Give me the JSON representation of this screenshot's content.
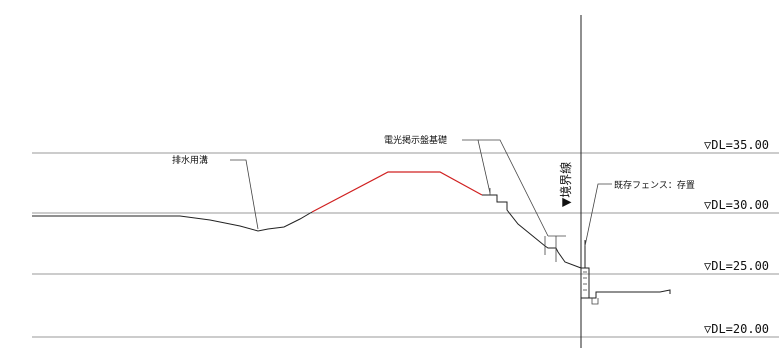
{
  "levels": [
    {
      "label": "▽DL=35.00"
    },
    {
      "label": "▽DL=30.00"
    },
    {
      "label": "▽DL=25.00"
    },
    {
      "label": "▽DL=20.00"
    }
  ],
  "annotations": {
    "drainage": "排水用溝",
    "sign_foundation": "電光掲示盤基礎",
    "existing_fence": "既存フェンス：存置"
  },
  "boundary": {
    "label": "▼境界線"
  },
  "colors": {
    "line": "#222222",
    "reference_line": "#9a9a9a",
    "embankment": "#d02020",
    "background": "#ffffff"
  }
}
